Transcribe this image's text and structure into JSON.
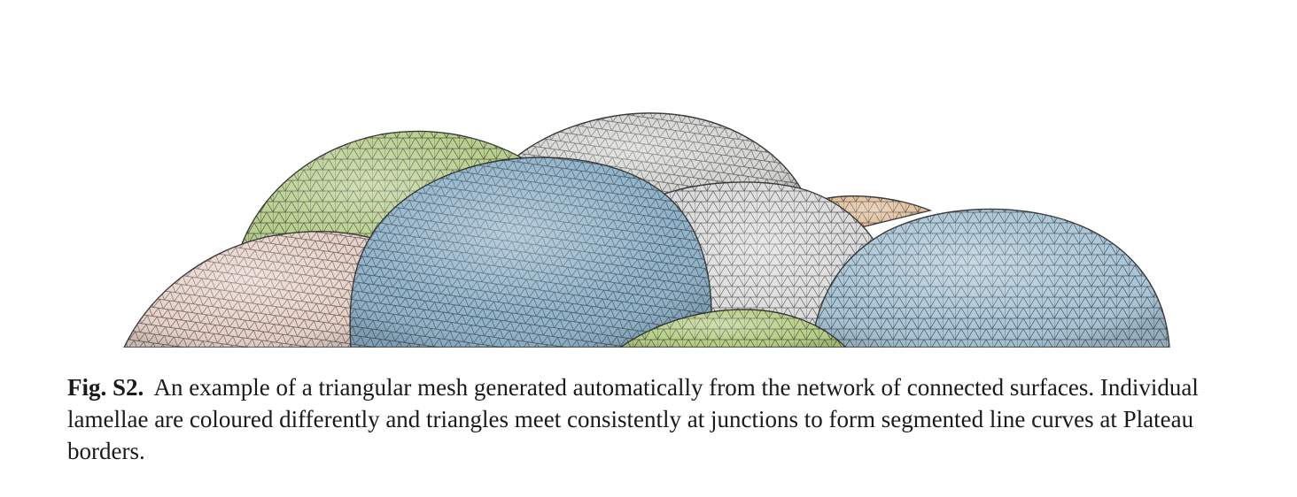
{
  "figure": {
    "label": "Fig. S2.",
    "caption": "An example of a triangular mesh generated automatically from the network of connected surfaces. Individual lamellae are coloured differently and triangles meet consistently at junctions to form segmented line curves at Plateau borders.",
    "lamellae": [
      {
        "name": "pink-lamella",
        "color": "#e8d2c8"
      },
      {
        "name": "green-lamella-left",
        "color": "#b8cf8c"
      },
      {
        "name": "grey-lamella-back",
        "color": "#d4d6d2"
      },
      {
        "name": "orange-lamella",
        "color": "#e2c09c"
      },
      {
        "name": "grey-lamella-middle",
        "color": "#dcdcdc"
      },
      {
        "name": "blue-lamella-left",
        "color": "#8fb4cc"
      },
      {
        "name": "blue-lamella-right",
        "color": "#a8c6d8"
      },
      {
        "name": "green-lamella-bottom",
        "color": "#b6cf84"
      }
    ],
    "mesh_color": "#2b2b2b"
  }
}
